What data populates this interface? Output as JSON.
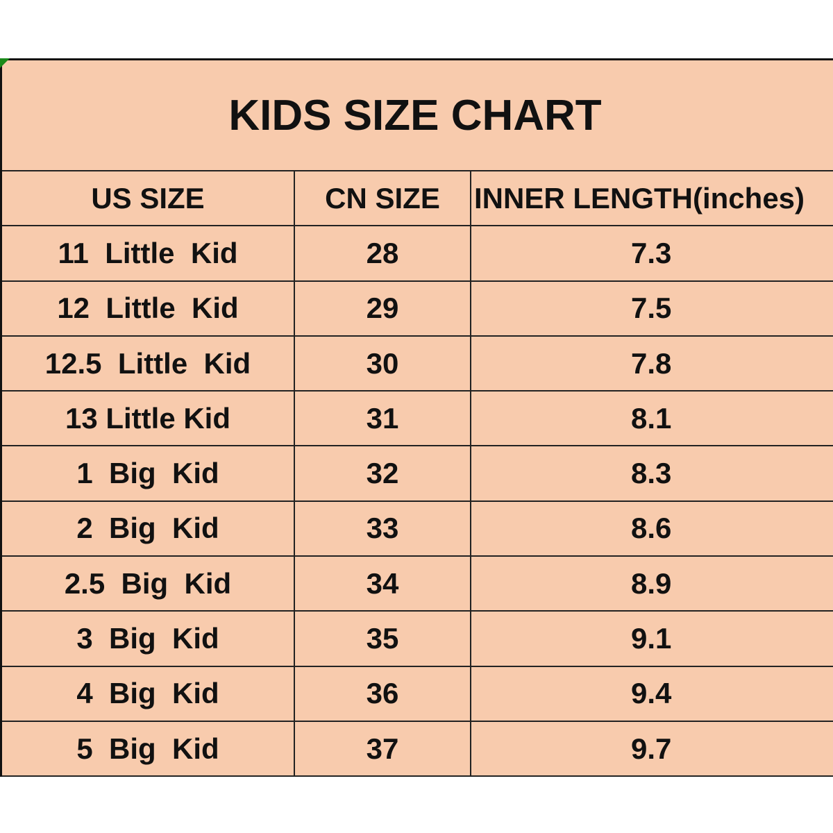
{
  "title": "KIDS SIZE CHART",
  "headers": [
    "US SIZE",
    "CN SIZE",
    "INNER LENGTH(inches)"
  ],
  "rows": [
    [
      "11  Little  Kid",
      "28",
      "7.3"
    ],
    [
      "12  Little  Kid",
      "29",
      "7.5"
    ],
    [
      "12.5  Little  Kid",
      "30",
      "7.8"
    ],
    [
      "13 Little Kid",
      "31",
      "8.1"
    ],
    [
      "1  Big  Kid",
      "32",
      "8.3"
    ],
    [
      "2  Big  Kid",
      "33",
      "8.6"
    ],
    [
      "2.5  Big  Kid",
      "34",
      "8.9"
    ],
    [
      "3  Big  Kid",
      "35",
      "9.1"
    ],
    [
      "4  Big  Kid",
      "36",
      "9.4"
    ],
    [
      "5  Big  Kid",
      "37",
      "9.7"
    ]
  ],
  "colors": {
    "background": "#F8CBAD",
    "border": "#222222"
  }
}
